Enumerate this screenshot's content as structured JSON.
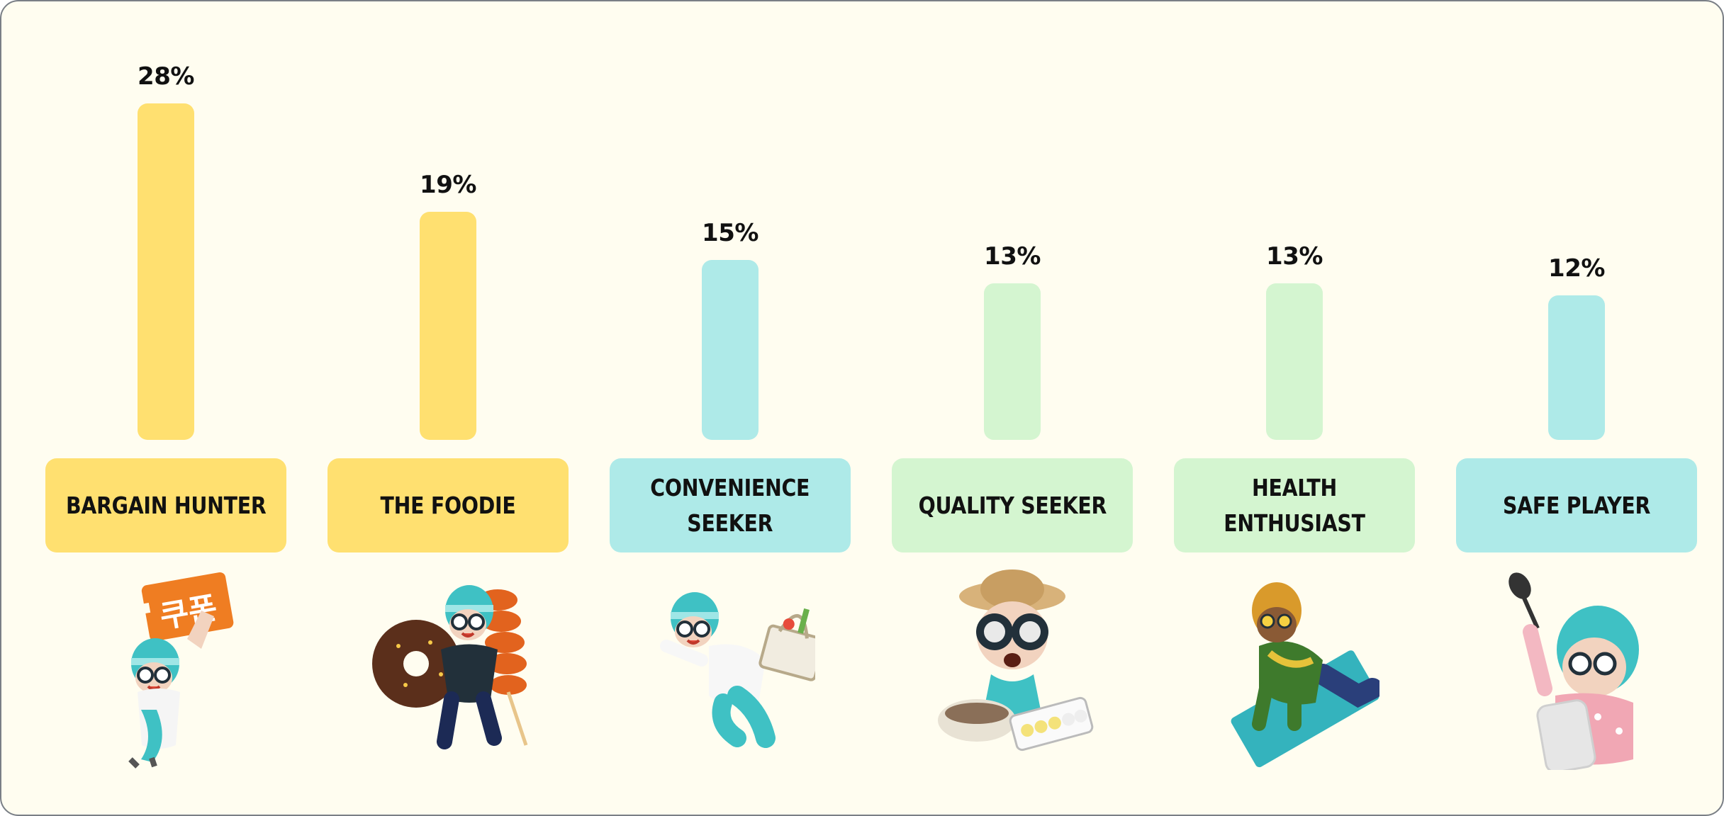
{
  "chart_data": {
    "type": "bar",
    "title": "",
    "xlabel": "",
    "ylabel": "",
    "ylim": [
      0,
      28
    ],
    "categories": [
      "BARGAIN HUNTER",
      "THE FOODIE",
      "CONVENIENCE\nSEEKER",
      "QUALITY SEEKER",
      "HEALTH\nENTHUSIAST",
      "SAFE PLAYER"
    ],
    "values": [
      28,
      19,
      15,
      13,
      13,
      12
    ],
    "value_labels": [
      "28%",
      "19%",
      "15%",
      "13%",
      "13%",
      "12%"
    ],
    "grid": false,
    "legend": "none"
  },
  "colors": {
    "bar": [
      "#ffe070",
      "#ffe070",
      "#aeeae8",
      "#d4f5d0",
      "#d4f5d0",
      "#aeeae8"
    ],
    "label_bg": [
      "#ffe070",
      "#ffe070",
      "#aeeae8",
      "#d4f5d0",
      "#d4f5d0",
      "#aeeae8"
    ]
  },
  "illustrations": [
    "character-holding-coupon-sign-icon",
    "character-with-donut-and-skewer-icon",
    "character-running-with-grocery-basket-icon",
    "character-with-binoculars-and-food-icon",
    "character-doing-yoga-on-mat-icon",
    "character-with-spoon-and-phone-icon"
  ]
}
